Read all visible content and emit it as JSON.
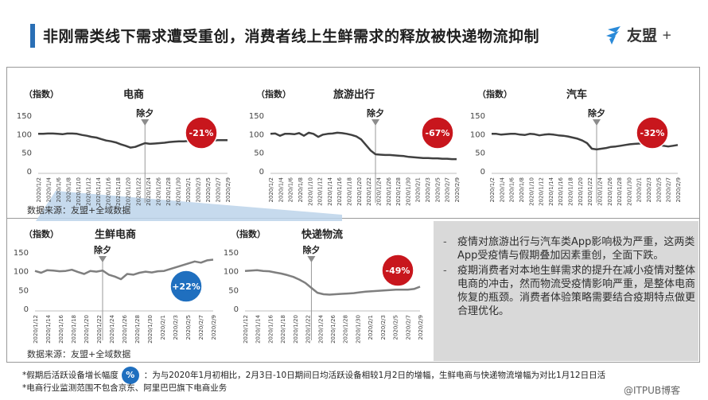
{
  "title": "非刚需类线下需求遭受重创，消费者线上生鲜需求的释放被快递物流抑制",
  "logo": {
    "text": "友盟",
    "plus": "+"
  },
  "source_label": "数据来源：友盟+全域数据",
  "bullets": [
    "疫情对旅游出行与汽车类App影响极为严重，这两类App受疫情与假期叠加因素重创，全面下跌。",
    "疫期消费者对本地生鲜需求的提升在减小疫情对整体电商的冲击，然而物流受疫情影响严重，是整体电商恢复的瓶颈。消费者体验策略需要结合疫期特点做更合理优化。"
  ],
  "footnotes": {
    "line1_pre": "*假期后活跃设备增长幅度",
    "badge": "%",
    "line1_post": "：为与2020年1月初相比，2月3日-10日期间日均活跃设备相较1月2日的增幅，生鲜电商与快递物流增幅为对比1月12日日活",
    "line2": "*电商行业监测范围不包含京东、阿里巴巴旗下电商业务"
  },
  "watermark": "@ITPUB博客",
  "colors": {
    "title_bar": "#2a6fb5",
    "red": "#c8161d",
    "blue": "#1f6fbf",
    "line_dark": "#404040",
    "line_light": "#7f7f7f"
  },
  "chart_data": [
    {
      "type": "line",
      "title": "电商",
      "ylabel": "（指数）",
      "ylim": [
        0,
        150
      ],
      "yticks": [
        0,
        50,
        100,
        150
      ],
      "x_labels": [
        "2020/1/2",
        "2020/1/4",
        "2020/1/6",
        "2020/1/8",
        "2020/1/10",
        "2020/1/12",
        "2020/1/14",
        "2020/1/16",
        "2020/1/18",
        "2020/1/20",
        "2020/1/22",
        "2020/1/24",
        "2020/1/26",
        "2020/1/28",
        "2020/1/30",
        "2020/2/1",
        "2020/2/3",
        "2020/2/5",
        "2020/2/7",
        "2020/2/9"
      ],
      "values": [
        100,
        100,
        101,
        101,
        100,
        99,
        101,
        101,
        100,
        97,
        95,
        92,
        90,
        86,
        82,
        80,
        77,
        72,
        68,
        63,
        65,
        70,
        75,
        73,
        74,
        75,
        76,
        78,
        79,
        80,
        80,
        81,
        81,
        82,
        81,
        82,
        82,
        83,
        83,
        83
      ],
      "marker_label": "除夕",
      "marker_index": 22,
      "badge": "-21%",
      "badge_color": "red"
    },
    {
      "type": "line",
      "title": "旅游出行",
      "ylabel": "（指数）",
      "ylim": [
        0,
        150
      ],
      "yticks": [
        0,
        50,
        100,
        150
      ],
      "x_labels": [
        "2020/1/2",
        "2020/1/4",
        "2020/1/6",
        "2020/1/8",
        "2020/1/10",
        "2020/1/12",
        "2020/1/14",
        "2020/1/16",
        "2020/1/18",
        "2020/1/20",
        "2020/1/22",
        "2020/1/24",
        "2020/1/26",
        "2020/1/28",
        "2020/1/30",
        "2020/2/1",
        "2020/2/3",
        "2020/2/5",
        "2020/2/7",
        "2020/2/9"
      ],
      "values": [
        100,
        101,
        95,
        100,
        100,
        99,
        102,
        95,
        103,
        100,
        92,
        98,
        100,
        101,
        103,
        102,
        100,
        97,
        93,
        85,
        70,
        55,
        45,
        44,
        43,
        43,
        42,
        41,
        40,
        38,
        37,
        36,
        35,
        35,
        34,
        34,
        33,
        33,
        32,
        32
      ],
      "marker_label": "除夕",
      "marker_index": 22,
      "badge": "-67%",
      "badge_color": "red"
    },
    {
      "type": "line",
      "title": "汽车",
      "ylabel": "（指数）",
      "ylim": [
        0,
        150
      ],
      "yticks": [
        0,
        50,
        100,
        150
      ],
      "x_labels": [
        "2020/1/2",
        "2020/1/4",
        "2020/1/6",
        "2020/1/8",
        "2020/1/10",
        "2020/1/12",
        "2020/1/14",
        "2020/1/16",
        "2020/1/18",
        "2020/1/20",
        "2020/1/22",
        "2020/1/24",
        "2020/1/26",
        "2020/1/28",
        "2020/1/30",
        "2020/2/1",
        "2020/2/3",
        "2020/2/5",
        "2020/2/7",
        "2020/2/9"
      ],
      "values": [
        100,
        100,
        98,
        99,
        100,
        100,
        98,
        97,
        100,
        99,
        96,
        98,
        99,
        98,
        96,
        95,
        93,
        90,
        87,
        82,
        75,
        60,
        58,
        60,
        62,
        65,
        66,
        68,
        70,
        72,
        73,
        74,
        75,
        74,
        72,
        70,
        68,
        66,
        68,
        70
      ],
      "marker_label": "除夕",
      "marker_index": 22,
      "badge": "-32%",
      "badge_color": "red"
    },
    {
      "type": "line",
      "title": "生鲜电商",
      "ylabel": "（指数）",
      "ylim": [
        0,
        150
      ],
      "yticks": [
        0,
        50,
        100,
        150
      ],
      "x_labels": [
        "2020/1/12",
        "2020/1/14",
        "2020/1/16",
        "2020/1/18",
        "2020/1/20",
        "2020/1/22",
        "2020/1/24",
        "2020/1/26",
        "2020/1/28",
        "2020/1/30",
        "2020/2/1",
        "2020/2/3",
        "2020/2/5",
        "2020/2/7",
        "2020/2/9"
      ],
      "values": [
        100,
        95,
        102,
        101,
        99,
        100,
        103,
        97,
        92,
        100,
        98,
        101,
        90,
        85,
        78,
        92,
        90,
        95,
        98,
        96,
        99,
        100,
        105,
        110,
        115,
        120,
        125,
        122,
        128,
        130
      ],
      "marker_label": "除夕",
      "marker_index": 11,
      "badge": "+22%",
      "badge_color": "blue"
    },
    {
      "type": "line",
      "title": "快递物流",
      "ylabel": "（指数）",
      "ylim": [
        0,
        150
      ],
      "yticks": [
        0,
        50,
        100,
        150
      ],
      "x_labels": [
        "2020/1/12",
        "2020/1/14",
        "2020/1/16",
        "2020/1/18",
        "2020/1/20",
        "2020/1/22",
        "2020/1/24",
        "2020/1/26",
        "2020/1/28",
        "2020/1/30",
        "2020/2/1",
        "2020/2/3",
        "2020/2/5",
        "2020/2/7",
        "2020/2/9"
      ],
      "values": [
        100,
        101,
        102,
        100,
        99,
        96,
        93,
        89,
        84,
        77,
        68,
        55,
        42,
        38,
        37,
        38,
        39,
        40,
        41,
        43,
        45,
        46,
        47,
        48,
        49,
        50,
        50,
        50,
        52,
        58
      ],
      "marker_label": "除夕",
      "marker_index": 11,
      "badge": "-49%",
      "badge_color": "red"
    }
  ]
}
